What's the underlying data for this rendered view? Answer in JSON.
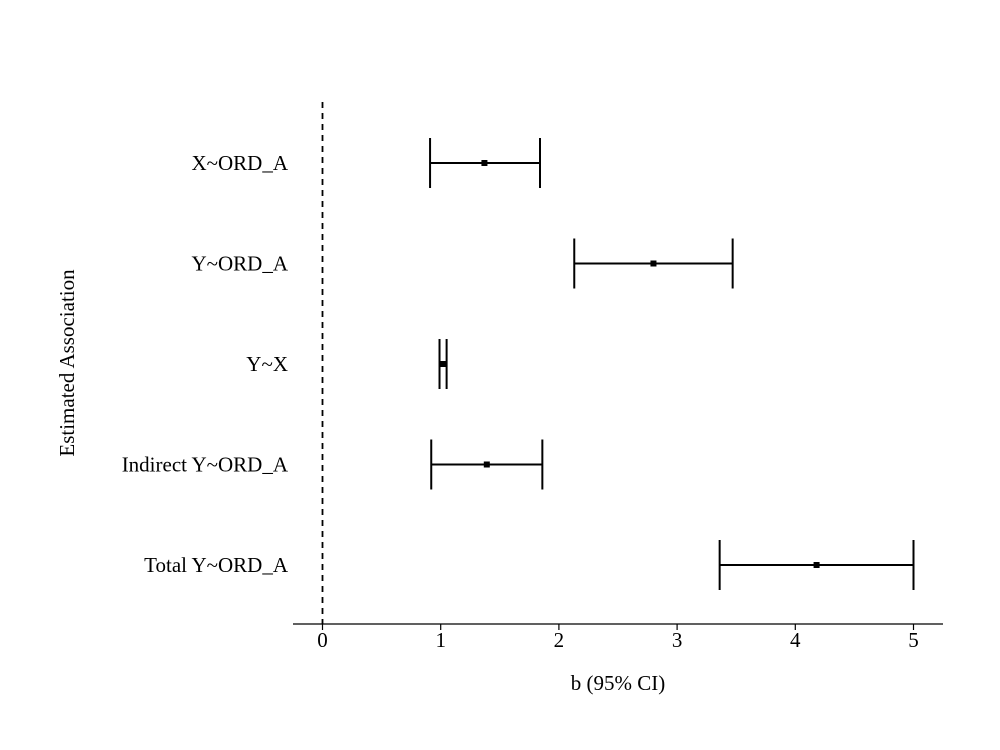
{
  "chart_data": {
    "type": "forest",
    "xlabel": "b (95% CI)",
    "ylabel": "Estimated Association",
    "xlim": [
      -0.25,
      5.25
    ],
    "xticks": [
      0,
      1,
      2,
      3,
      4,
      5
    ],
    "reference_line_x": 0,
    "grid": false,
    "legend": "none",
    "rows": [
      {
        "label": "X~ORD_A",
        "estimate": 1.37,
        "lower": 0.91,
        "upper": 1.84
      },
      {
        "label": "Y~ORD_A",
        "estimate": 2.8,
        "lower": 2.13,
        "upper": 3.47
      },
      {
        "label": "Y~X",
        "estimate": 1.02,
        "lower": 0.99,
        "upper": 1.05
      },
      {
        "label": "Indirect Y~ORD_A",
        "estimate": 1.39,
        "lower": 0.92,
        "upper": 1.86
      },
      {
        "label": "Total Y~ORD_A",
        "estimate": 4.18,
        "lower": 3.36,
        "upper": 5.0
      }
    ],
    "colors": {
      "line": "#000000",
      "background": "#ffffff"
    }
  }
}
